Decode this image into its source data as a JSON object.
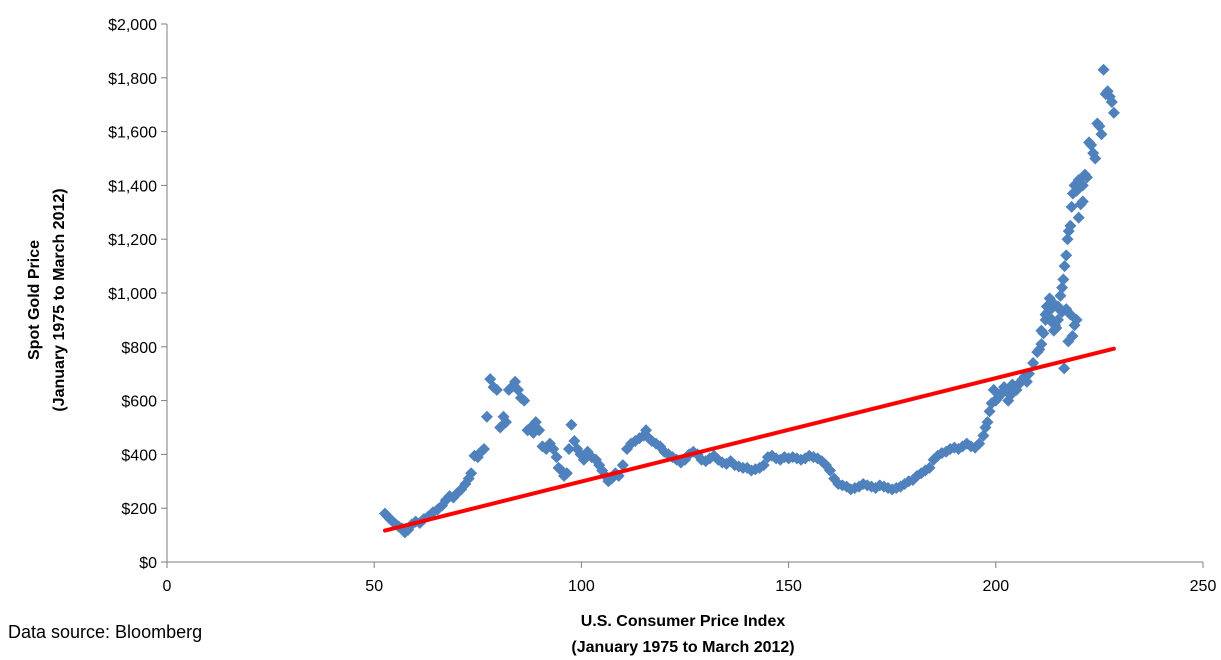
{
  "source_note": "Data source: Bloomberg",
  "colors": {
    "points": "#4F81BD",
    "trendline": "#FF0000",
    "axis": "#7F7F7F"
  },
  "chart_data": {
    "type": "scatter",
    "xlabel": [
      "U.S. Consumer Price Index",
      "(January 1975 to March 2012)"
    ],
    "ylabel": [
      "Spot Gold Price",
      "(January 1975 to March 2012)"
    ],
    "xlim": [
      0,
      250
    ],
    "ylim": [
      0,
      2000
    ],
    "x_ticks": [
      0,
      50,
      100,
      150,
      200,
      250
    ],
    "y_ticks": [
      0,
      200,
      400,
      600,
      800,
      1000,
      1200,
      1400,
      1600,
      1800,
      2000
    ],
    "x_tick_labels": [
      "0",
      "50",
      "100",
      "150",
      "200",
      "250"
    ],
    "y_tick_labels": [
      "$0",
      "$200",
      "$400",
      "$600",
      "$800",
      "$1,000",
      "$1,200",
      "$1,400",
      "$1,600",
      "$1,800",
      "$2,000"
    ],
    "grid": false,
    "legend": "none",
    "series": [
      {
        "marker": "diamond",
        "points": [
          [
            52.6,
            180
          ],
          [
            53.2,
            170
          ],
          [
            53.8,
            160
          ],
          [
            54.5,
            150
          ],
          [
            55.2,
            140
          ],
          [
            55.9,
            132
          ],
          [
            56.7,
            125
          ],
          [
            57.4,
            110
          ],
          [
            58.2,
            120
          ],
          [
            59.1,
            140
          ],
          [
            60.0,
            150
          ],
          [
            61.0,
            145
          ],
          [
            62.0,
            160
          ],
          [
            63.1,
            170
          ],
          [
            64.2,
            185
          ],
          [
            65.3,
            195
          ],
          [
            66.4,
            210
          ],
          [
            67.3,
            230
          ],
          [
            68.2,
            245
          ],
          [
            69.1,
            240
          ],
          [
            70.0,
            255
          ],
          [
            71.0,
            270
          ],
          [
            72.0,
            290
          ],
          [
            72.8,
            310
          ],
          [
            73.4,
            330
          ],
          [
            74.2,
            395
          ],
          [
            75.0,
            390
          ],
          [
            75.8,
            410
          ],
          [
            76.5,
            420
          ],
          [
            77.2,
            540
          ],
          [
            78.0,
            680
          ],
          [
            78.8,
            650
          ],
          [
            79.6,
            640
          ],
          [
            80.4,
            500
          ],
          [
            81.2,
            540
          ],
          [
            81.8,
            520
          ],
          [
            82.5,
            640
          ],
          [
            83.2,
            650
          ],
          [
            84.0,
            670
          ],
          [
            84.7,
            640
          ],
          [
            85.4,
            610
          ],
          [
            86.2,
            600
          ],
          [
            87.0,
            490
          ],
          [
            87.8,
            500
          ],
          [
            88.4,
            480
          ],
          [
            89.0,
            520
          ],
          [
            89.8,
            490
          ],
          [
            90.6,
            430
          ],
          [
            91.5,
            420
          ],
          [
            92.4,
            440
          ],
          [
            93.2,
            420
          ],
          [
            94.0,
            390
          ],
          [
            94.5,
            350
          ],
          [
            95.2,
            340
          ],
          [
            95.8,
            320
          ],
          [
            96.5,
            330
          ],
          [
            97.0,
            420
          ],
          [
            97.6,
            510
          ],
          [
            98.3,
            450
          ],
          [
            99.0,
            420
          ],
          [
            99.8,
            400
          ],
          [
            100.6,
            380
          ],
          [
            101.5,
            410
          ],
          [
            102.5,
            390
          ],
          [
            103.5,
            380
          ],
          [
            104.3,
            360
          ],
          [
            105.0,
            340
          ],
          [
            105.8,
            320
          ],
          [
            106.5,
            300
          ],
          [
            107.3,
            310
          ],
          [
            108.2,
            330
          ],
          [
            109.0,
            320
          ],
          [
            110.0,
            360
          ],
          [
            111.0,
            420
          ],
          [
            112.0,
            440
          ],
          [
            113.0,
            450
          ],
          [
            114.0,
            460
          ],
          [
            115.0,
            470
          ],
          [
            115.6,
            490
          ],
          [
            116.3,
            460
          ],
          [
            117.0,
            450
          ],
          [
            118.0,
            440
          ],
          [
            119.0,
            430
          ],
          [
            120.0,
            410
          ],
          [
            121.0,
            400
          ],
          [
            122.0,
            390
          ],
          [
            123.0,
            380
          ],
          [
            124.0,
            370
          ],
          [
            125.0,
            380
          ],
          [
            126.0,
            400
          ],
          [
            127.0,
            410
          ],
          [
            128.0,
            400
          ],
          [
            129.0,
            380
          ],
          [
            130.0,
            375
          ],
          [
            131.0,
            385
          ],
          [
            132.0,
            395
          ],
          [
            133.0,
            380
          ],
          [
            134.0,
            370
          ],
          [
            135.0,
            365
          ],
          [
            136.0,
            375
          ],
          [
            137.0,
            360
          ],
          [
            138.0,
            355
          ],
          [
            139.0,
            350
          ],
          [
            140.0,
            350
          ],
          [
            141.0,
            340
          ],
          [
            142.0,
            345
          ],
          [
            143.0,
            350
          ],
          [
            144.0,
            360
          ],
          [
            145.0,
            390
          ],
          [
            146.0,
            395
          ],
          [
            147.0,
            385
          ],
          [
            148.0,
            380
          ],
          [
            149.0,
            390
          ],
          [
            150.0,
            385
          ],
          [
            151.0,
            390
          ],
          [
            152.0,
            385
          ],
          [
            153.0,
            380
          ],
          [
            154.0,
            385
          ],
          [
            155.0,
            395
          ],
          [
            156.0,
            390
          ],
          [
            157.0,
            385
          ],
          [
            158.0,
            375
          ],
          [
            159.0,
            360
          ],
          [
            160.0,
            340
          ],
          [
            161.0,
            310
          ],
          [
            162.0,
            290
          ],
          [
            163.0,
            285
          ],
          [
            164.0,
            280
          ],
          [
            165.0,
            270
          ],
          [
            166.0,
            275
          ],
          [
            167.0,
            280
          ],
          [
            168.0,
            290
          ],
          [
            169.0,
            285
          ],
          [
            170.0,
            280
          ],
          [
            171.0,
            275
          ],
          [
            172.0,
            285
          ],
          [
            173.0,
            280
          ],
          [
            174.0,
            275
          ],
          [
            175.0,
            270
          ],
          [
            176.0,
            275
          ],
          [
            177.0,
            280
          ],
          [
            178.0,
            290
          ],
          [
            179.0,
            300
          ],
          [
            180.0,
            305
          ],
          [
            181.0,
            320
          ],
          [
            182.0,
            330
          ],
          [
            183.0,
            340
          ],
          [
            184.0,
            350
          ],
          [
            185.0,
            380
          ],
          [
            186.0,
            395
          ],
          [
            187.0,
            405
          ],
          [
            188.0,
            410
          ],
          [
            189.0,
            420
          ],
          [
            190.0,
            425
          ],
          [
            191.0,
            420
          ],
          [
            192.0,
            430
          ],
          [
            193.0,
            440
          ],
          [
            194.0,
            430
          ],
          [
            195.0,
            425
          ],
          [
            196.0,
            440
          ],
          [
            197.0,
            470
          ],
          [
            197.5,
            500
          ],
          [
            198.0,
            520
          ],
          [
            198.5,
            560
          ],
          [
            199.0,
            590
          ],
          [
            199.5,
            640
          ],
          [
            200.0,
            600
          ],
          [
            200.5,
            610
          ],
          [
            201.0,
            620
          ],
          [
            201.5,
            630
          ],
          [
            202.0,
            650
          ],
          [
            202.5,
            640
          ],
          [
            203.0,
            600
          ],
          [
            203.5,
            620
          ],
          [
            204.0,
            660
          ],
          [
            204.5,
            650
          ],
          [
            205.0,
            640
          ],
          [
            205.5,
            660
          ],
          [
            206.0,
            670
          ],
          [
            206.5,
            680
          ],
          [
            207.0,
            690
          ],
          [
            207.5,
            670
          ],
          [
            208.0,
            700
          ],
          [
            209.0,
            740
          ],
          [
            210.0,
            780
          ],
          [
            210.5,
            790
          ],
          [
            211.0,
            810
          ],
          [
            211.5,
            850
          ],
          [
            212.0,
            900
          ],
          [
            212.3,
            950
          ],
          [
            212.6,
            930
          ],
          [
            213.0,
            980
          ],
          [
            213.3,
            940
          ],
          [
            213.6,
            900
          ],
          [
            214.0,
            960
          ],
          [
            214.3,
            880
          ],
          [
            214.6,
            870
          ],
          [
            215.0,
            900
          ],
          [
            215.3,
            940
          ],
          [
            215.6,
            990
          ],
          [
            216.0,
            1020
          ],
          [
            216.3,
            1050
          ],
          [
            216.6,
            1100
          ],
          [
            217.0,
            1140
          ],
          [
            217.3,
            1200
          ],
          [
            217.6,
            1230
          ],
          [
            218.0,
            1250
          ],
          [
            218.3,
            1320
          ],
          [
            218.6,
            1370
          ],
          [
            219.0,
            1400
          ],
          [
            219.5,
            1380
          ],
          [
            220.0,
            1420
          ],
          [
            220.5,
            1330
          ],
          [
            221.0,
            1400
          ],
          [
            221.5,
            1440
          ],
          [
            222.0,
            1430
          ],
          [
            222.5,
            1560
          ],
          [
            223.0,
            1550
          ],
          [
            223.5,
            1520
          ],
          [
            224.0,
            1500
          ],
          [
            224.5,
            1630
          ],
          [
            225.0,
            1620
          ],
          [
            225.5,
            1590
          ],
          [
            226.0,
            1830
          ],
          [
            226.5,
            1740
          ],
          [
            227.0,
            1750
          ],
          [
            227.5,
            1730
          ],
          [
            228.0,
            1710
          ],
          [
            228.5,
            1670
          ],
          [
            216.5,
            720
          ],
          [
            217.5,
            820
          ],
          [
            218.5,
            840
          ],
          [
            219.0,
            880
          ],
          [
            219.5,
            900
          ],
          [
            218.0,
            920
          ],
          [
            217.0,
            940
          ],
          [
            216.0,
            930
          ],
          [
            215.0,
            950
          ],
          [
            213.0,
            900
          ],
          [
            212.0,
            920
          ],
          [
            211.0,
            860
          ],
          [
            214.0,
            860
          ],
          [
            220.0,
            1280
          ],
          [
            221.0,
            1340
          ]
        ]
      }
    ],
    "trendline": {
      "x": [
        52.6,
        228.5
      ],
      "y": [
        117,
        793
      ]
    }
  }
}
